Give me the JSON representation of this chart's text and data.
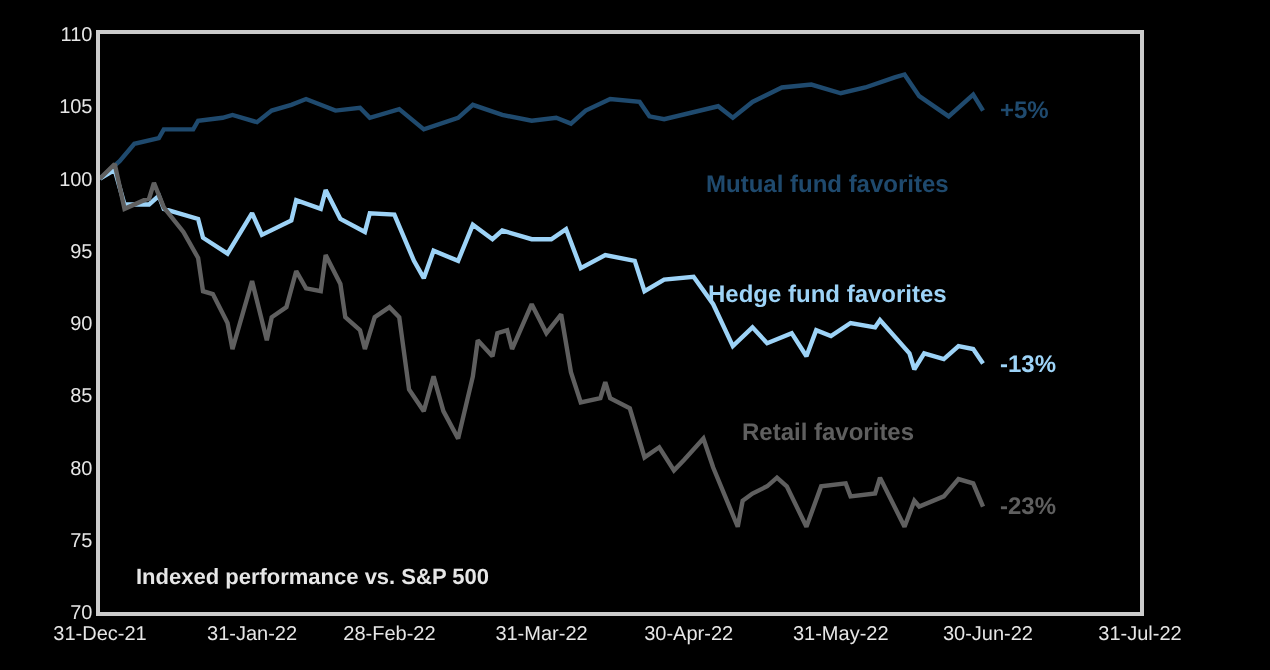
{
  "chart_data": {
    "type": "line",
    "series": [
      {
        "name": "Mutual fund favorites",
        "color": "#1f4a6e",
        "x": [
          "2021-12-31",
          "2022-01-04",
          "2022-01-07",
          "2022-01-12",
          "2022-01-13",
          "2022-01-19",
          "2022-01-20",
          "2022-01-25",
          "2022-01-27",
          "2022-02-01",
          "2022-02-04",
          "2022-02-08",
          "2022-02-11",
          "2022-02-17",
          "2022-02-22",
          "2022-02-24",
          "2022-03-02",
          "2022-03-07",
          "2022-03-14",
          "2022-03-17",
          "2022-03-23",
          "2022-03-29",
          "2022-04-03",
          "2022-04-06",
          "2022-04-09",
          "2022-04-14",
          "2022-04-20",
          "2022-04-22",
          "2022-04-25",
          "2022-05-06",
          "2022-05-09",
          "2022-05-13",
          "2022-05-19",
          "2022-05-25",
          "2022-05-31",
          "2022-06-05",
          "2022-06-11",
          "2022-06-13",
          "2022-06-16",
          "2022-06-22",
          "2022-06-27",
          "2022-06-29"
        ],
        "values": [
          100,
          101.2,
          102.4,
          102.8,
          103.4,
          103.4,
          104,
          104.2,
          104.4,
          103.9,
          104.7,
          105.1,
          105.5,
          104.7,
          104.9,
          104.2,
          104.8,
          103.4,
          104.2,
          105.1,
          104.4,
          104,
          104.2,
          103.8,
          104.7,
          105.5,
          105.3,
          104.3,
          104.1,
          105,
          104.2,
          105.3,
          106.3,
          106.5,
          105.9,
          106.3,
          107,
          107.2,
          105.7,
          104.3,
          105.8,
          104.7
        ]
      },
      {
        "name": "Hedge fund favorites",
        "color": "#9dd3f7",
        "x": [
          "2021-12-31",
          "2022-01-03",
          "2022-01-05",
          "2022-01-10",
          "2022-01-12",
          "2022-01-13",
          "2022-01-20",
          "2022-01-21",
          "2022-01-26",
          "2022-01-31",
          "2022-02-02",
          "2022-02-08",
          "2022-02-09",
          "2022-02-14",
          "2022-02-15",
          "2022-02-18",
          "2022-02-23",
          "2022-02-24",
          "2022-03-01",
          "2022-03-05",
          "2022-03-07",
          "2022-03-09",
          "2022-03-14",
          "2022-03-17",
          "2022-03-21",
          "2022-03-23",
          "2022-03-29",
          "2022-04-02",
          "2022-04-05",
          "2022-04-08",
          "2022-04-13",
          "2022-04-19",
          "2022-04-21",
          "2022-04-25",
          "2022-05-01",
          "2022-05-05",
          "2022-05-09",
          "2022-05-13",
          "2022-05-16",
          "2022-05-21",
          "2022-05-24",
          "2022-05-26",
          "2022-05-29",
          "2022-06-02",
          "2022-06-07",
          "2022-06-08",
          "2022-06-14",
          "2022-06-15",
          "2022-06-17",
          "2022-06-21",
          "2022-06-24",
          "2022-06-27",
          "2022-06-29"
        ],
        "values": [
          100,
          100.6,
          98.2,
          98.2,
          98.8,
          97.9,
          97.2,
          95.9,
          94.8,
          97.6,
          96.1,
          97.1,
          98.5,
          97.9,
          99.2,
          97.2,
          96.3,
          97.6,
          97.5,
          94.3,
          93.1,
          95,
          94.3,
          96.8,
          95.8,
          96.4,
          95.8,
          95.8,
          96.5,
          93.8,
          94.7,
          94.3,
          92.2,
          93,
          93.2,
          91.3,
          88.4,
          89.7,
          88.6,
          89.3,
          87.7,
          89.5,
          89.1,
          90,
          89.7,
          90.2,
          87.9,
          86.8,
          87.9,
          87.5,
          88.4,
          88.2,
          87.2
        ]
      },
      {
        "name": "Retail favorites",
        "color": "#5f5f5f",
        "x": [
          "2021-12-31",
          "2022-01-03",
          "2022-01-05",
          "2022-01-09",
          "2022-01-10",
          "2022-01-11",
          "2022-01-13",
          "2022-01-17",
          "2022-01-20",
          "2022-01-21",
          "2022-01-23",
          "2022-01-26",
          "2022-01-27",
          "2022-01-31",
          "2022-02-03",
          "2022-02-04",
          "2022-02-07",
          "2022-02-09",
          "2022-02-11",
          "2022-02-14",
          "2022-02-15",
          "2022-02-18",
          "2022-02-19",
          "2022-02-22",
          "2022-02-23",
          "2022-02-25",
          "2022-02-28",
          "2022-03-02",
          "2022-03-04",
          "2022-03-07",
          "2022-03-09",
          "2022-03-11",
          "2022-03-14",
          "2022-03-17",
          "2022-03-18",
          "2022-03-21",
          "2022-03-22",
          "2022-03-24",
          "2022-03-25",
          "2022-03-29",
          "2022-04-01",
          "2022-04-04",
          "2022-04-06",
          "2022-04-08",
          "2022-04-12",
          "2022-04-13",
          "2022-04-14",
          "2022-04-18",
          "2022-04-21",
          "2022-04-24",
          "2022-04-27",
          "2022-04-29",
          "2022-05-03",
          "2022-05-05",
          "2022-05-10",
          "2022-05-11",
          "2022-05-13",
          "2022-05-16",
          "2022-05-18",
          "2022-05-20",
          "2022-05-24",
          "2022-05-27",
          "2022-06-01",
          "2022-06-02",
          "2022-06-07",
          "2022-06-08",
          "2022-06-13",
          "2022-06-15",
          "2022-06-16",
          "2022-06-21",
          "2022-06-24",
          "2022-06-27",
          "2022-06-29"
        ],
        "values": [
          100,
          101,
          97.9,
          98.5,
          98.6,
          99.7,
          98,
          96.3,
          94.5,
          92.2,
          92,
          90,
          88.2,
          92.9,
          88.8,
          90.4,
          91.1,
          93.6,
          92.4,
          92.2,
          94.7,
          92.7,
          90.4,
          89.5,
          88.2,
          90.4,
          91.1,
          90.4,
          85.4,
          83.9,
          86.3,
          83.9,
          82,
          86.3,
          88.8,
          87.7,
          89.3,
          89.5,
          88.2,
          91.3,
          89.3,
          90.6,
          86.6,
          84.5,
          84.8,
          85.9,
          84.8,
          84.1,
          80.7,
          81.4,
          79.8,
          80.5,
          82,
          80,
          75.9,
          77.7,
          78.2,
          78.7,
          79.3,
          78.7,
          75.9,
          78.7,
          78.9,
          78,
          78.2,
          79.3,
          75.9,
          77.7,
          77.3,
          78,
          79.2,
          78.9,
          77.3
        ]
      }
    ],
    "annotations": [
      {
        "text": "+5%",
        "x": "2022-06-29",
        "y": 104.7
      },
      {
        "text": "-13%",
        "x": "2022-06-29",
        "y": 87.2
      },
      {
        "text": "-23%",
        "x": "2022-06-29",
        "y": 77.3
      },
      "Indexed performance vs. S&P 500"
    ],
    "xlim": [
      "2021-12-31",
      "2022-07-31"
    ],
    "xticks": [
      {
        "value": "2021-12-31",
        "label": "31-Dec-21"
      },
      {
        "value": "2022-01-31",
        "label": "31-Jan-22"
      },
      {
        "value": "2022-02-28",
        "label": "28-Feb-22"
      },
      {
        "value": "2022-03-31",
        "label": "31-Mar-22"
      },
      {
        "value": "2022-04-30",
        "label": "30-Apr-22"
      },
      {
        "value": "2022-05-31",
        "label": "31-May-22"
      },
      {
        "value": "2022-06-30",
        "label": "30-Jun-22"
      },
      {
        "value": "2022-07-31",
        "label": "31-Jul-22"
      }
    ],
    "ylim": [
      70,
      110
    ],
    "yticks": [
      70,
      75,
      80,
      85,
      90,
      95,
      100,
      105,
      110
    ],
    "grid": false,
    "legend": false,
    "line_style": "solid",
    "marker": "none"
  }
}
